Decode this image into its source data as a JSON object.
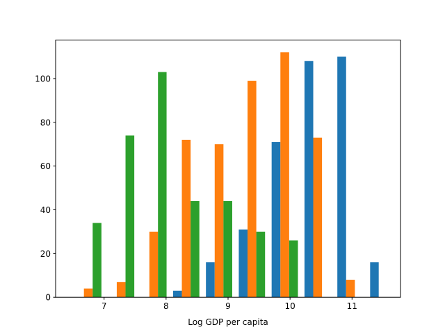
{
  "chart_data": {
    "type": "bar",
    "xlabel": "Log GDP per capita",
    "ylabel": "",
    "title": "",
    "xlim": [
      6.218,
      11.782
    ],
    "ylim": [
      0,
      117.6
    ],
    "xticks": [
      7,
      8,
      9,
      10,
      11
    ],
    "yticks": [
      0,
      20,
      40,
      60,
      80,
      100
    ],
    "grid": false,
    "bin_edges": [
      6.48,
      7.01,
      7.54,
      8.06,
      8.59,
      9.12,
      9.65,
      10.18,
      10.71,
      11.24,
      11.76
    ],
    "series": [
      {
        "color": "#1f77b4",
        "values": [
          0,
          0,
          0,
          3,
          16,
          31,
          71,
          108,
          110,
          16
        ]
      },
      {
        "color": "#ff7f0e",
        "values": [
          4,
          7,
          30,
          72,
          70,
          99,
          112,
          73,
          8,
          0
        ]
      },
      {
        "color": "#2ca02c",
        "values": [
          34,
          74,
          103,
          44,
          44,
          30,
          26,
          0,
          0,
          0
        ]
      }
    ]
  }
}
